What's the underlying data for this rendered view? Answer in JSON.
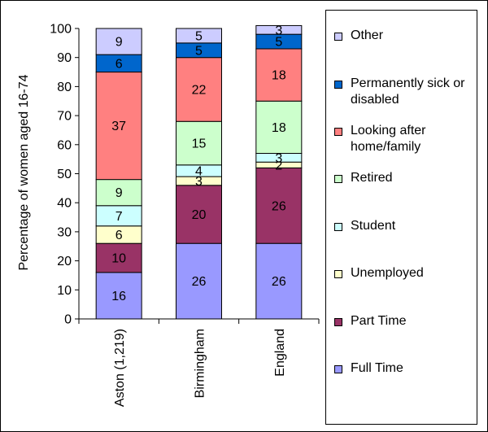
{
  "chart_data": {
    "type": "bar",
    "stacked": true,
    "ylabel": "Percentage of women aged 16-74",
    "ylim": [
      0,
      100
    ],
    "yticks": [
      "0",
      "10",
      "20",
      "30",
      "40",
      "50",
      "60",
      "70",
      "80",
      "90",
      "100"
    ],
    "categories": [
      "Aston (1,219)",
      "Birmingham",
      "England"
    ],
    "legend_position": "right",
    "series": [
      {
        "name": "Full Time",
        "color": "#9999ff",
        "values": [
          16,
          26,
          26
        ],
        "labels": [
          "16",
          "26",
          "26"
        ]
      },
      {
        "name": "Part Time",
        "color": "#993366",
        "values": [
          10,
          20,
          26
        ],
        "labels": [
          "10",
          "20",
          "26"
        ]
      },
      {
        "name": "Unemployed",
        "color": "#ffffcc",
        "values": [
          6,
          3,
          2
        ],
        "labels": [
          "6",
          "3",
          "2"
        ]
      },
      {
        "name": "Student",
        "color": "#ccffff",
        "values": [
          7,
          4,
          3
        ],
        "labels": [
          "7",
          "4",
          "3"
        ]
      },
      {
        "name": "Retired",
        "color": "#ccffcc",
        "values": [
          9,
          15,
          18
        ],
        "labels": [
          "9",
          "15",
          "18"
        ]
      },
      {
        "name": "Looking after home/family",
        "color": "#ff8080",
        "values": [
          37,
          22,
          18
        ],
        "labels": [
          "37",
          "22",
          "18"
        ]
      },
      {
        "name": "Permanently sick or disabled",
        "color": "#0066cc",
        "values": [
          6,
          5,
          5
        ],
        "labels": [
          "6",
          "5",
          "5"
        ]
      },
      {
        "name": "Other",
        "color": "#ccccff",
        "values": [
          9,
          5,
          3
        ],
        "labels": [
          "9",
          "5",
          "3"
        ]
      }
    ]
  }
}
